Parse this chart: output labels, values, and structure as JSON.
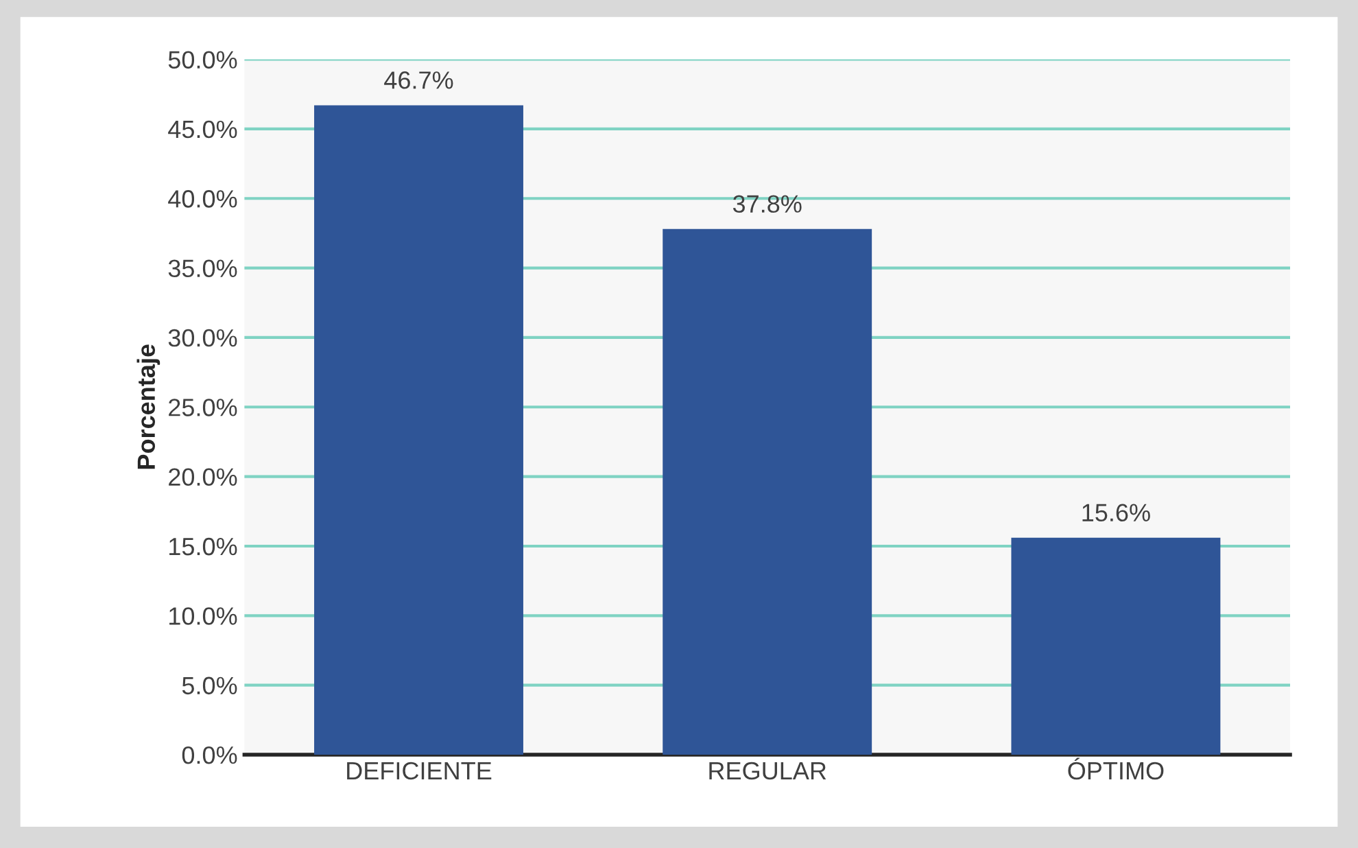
{
  "chart_data": {
    "type": "bar",
    "ylabel": "Porcentaje",
    "categories": [
      "DEFICIENTE",
      "REGULAR",
      "ÓPTIMO"
    ],
    "values": [
      46.7,
      37.8,
      15.6
    ],
    "value_labels": [
      "46.7%",
      "37.8%",
      "15.6%"
    ],
    "color": "#2f5597",
    "ylim": [
      0,
      50
    ],
    "yticks": [
      {
        "value": 0,
        "label": "0.0%"
      },
      {
        "value": 5,
        "label": "5.0%"
      },
      {
        "value": 10,
        "label": "10.0%"
      },
      {
        "value": 15,
        "label": "15.0%"
      },
      {
        "value": 20,
        "label": "20.0%"
      },
      {
        "value": 25,
        "label": "25.0%"
      },
      {
        "value": 30,
        "label": "30.0%"
      },
      {
        "value": 35,
        "label": "35.0%"
      },
      {
        "value": 40,
        "label": "40.0%"
      },
      {
        "value": 45,
        "label": "45.0%"
      },
      {
        "value": 50,
        "label": "50.0%"
      }
    ],
    "grid": "y",
    "legend": false
  }
}
